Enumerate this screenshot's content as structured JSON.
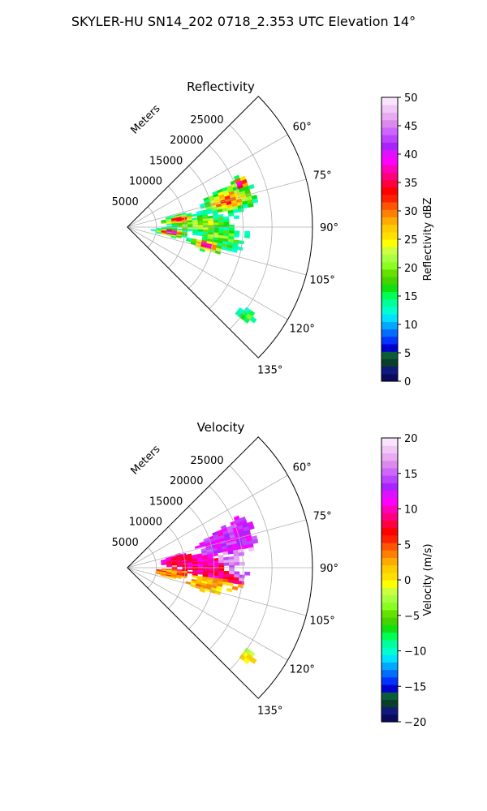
{
  "suptitle": "SKYLER-HU  SN14_202  0718_2.353 UTC Elevation 14°",
  "colors": {
    "grid": "#b0b0b0",
    "frame": "#000000"
  },
  "chart_data": [
    {
      "type": "heatmap",
      "subtype": "polar-sector (PPI radar scan)",
      "title": "Reflectivity",
      "r_axis_label": "Meters",
      "r_ticks": [
        5000,
        10000,
        15000,
        20000,
        25000
      ],
      "r_tick_labels": [
        "5000",
        "10000",
        "15000",
        "20000",
        "25000"
      ],
      "r_max": 32000,
      "theta_ticks": [
        60,
        75,
        90,
        105,
        120,
        135
      ],
      "theta_tick_labels": [
        "60°",
        "75°",
        "90°",
        "105°",
        "120°",
        "135°"
      ],
      "theta_range": [
        45,
        135
      ],
      "grid": true,
      "colorbar": {
        "label": "Reflectivity dBZ",
        "min": 0,
        "max": 50,
        "ticks": [
          0,
          5,
          10,
          15,
          20,
          25,
          30,
          35,
          40,
          45,
          50
        ],
        "tick_labels": [
          "0",
          "5",
          "10",
          "15",
          "20",
          "25",
          "30",
          "35",
          "40",
          "45",
          "50"
        ],
        "colors": [
          "#0a0a5e",
          "#0f1a7a",
          "#0a3d2a",
          "#0b5d3a",
          "#0000cc",
          "#0033ff",
          "#006dff",
          "#00a8ff",
          "#00e1ff",
          "#00ffd0",
          "#00ff99",
          "#00ff55",
          "#10e010",
          "#44d400",
          "#66e000",
          "#88ff20",
          "#aaff40",
          "#ccff40",
          "#ffff00",
          "#ffe000",
          "#ffcc00",
          "#ffaa00",
          "#ff8000",
          "#ff5500",
          "#ff2000",
          "#ff0000",
          "#ff0040",
          "#ff0080",
          "#ff00bb",
          "#ff00ff",
          "#dd11ff",
          "#aa22ff",
          "#bb44ff",
          "#cc66ff",
          "#dd88ee",
          "#e8aaf0",
          "#f0c8f5",
          "#f8e4fb"
        ]
      }
    },
    {
      "type": "heatmap",
      "subtype": "polar-sector (PPI radar scan)",
      "title": "Velocity",
      "r_axis_label": "Meters",
      "r_ticks": [
        5000,
        10000,
        15000,
        20000,
        25000
      ],
      "r_tick_labels": [
        "5000",
        "10000",
        "15000",
        "20000",
        "25000"
      ],
      "r_max": 32000,
      "theta_ticks": [
        60,
        75,
        90,
        105,
        120,
        135
      ],
      "theta_tick_labels": [
        "60°",
        "75°",
        "90°",
        "105°",
        "120°",
        "135°"
      ],
      "theta_range": [
        45,
        135
      ],
      "grid": true,
      "colorbar": {
        "label": "Velocity (m/s)",
        "min": -20,
        "max": 20,
        "ticks": [
          -20,
          -15,
          -10,
          -5,
          0,
          5,
          10,
          15,
          20
        ],
        "tick_labels": [
          "−20",
          "−15",
          "−10",
          "−5",
          "0",
          "5",
          "10",
          "15",
          "20"
        ],
        "colors": [
          "#0a0a5e",
          "#0f1a7a",
          "#0a3d2a",
          "#0b5d3a",
          "#0000cc",
          "#0033ff",
          "#006dff",
          "#00a8ff",
          "#00e1ff",
          "#00ffd0",
          "#00ff99",
          "#00ff55",
          "#10e010",
          "#44d400",
          "#66e000",
          "#88ff20",
          "#aaff40",
          "#ccff40",
          "#ffff00",
          "#ffe000",
          "#ffcc00",
          "#ffaa00",
          "#ff8000",
          "#ff5500",
          "#ff2000",
          "#ff0000",
          "#ff0040",
          "#ff0080",
          "#ff00bb",
          "#ff00ff",
          "#dd11ff",
          "#aa22ff",
          "#bb44ff",
          "#cc66ff",
          "#dd88ee",
          "#e8aaf0",
          "#f0c8f5",
          "#f8e4fb"
        ]
      }
    }
  ]
}
